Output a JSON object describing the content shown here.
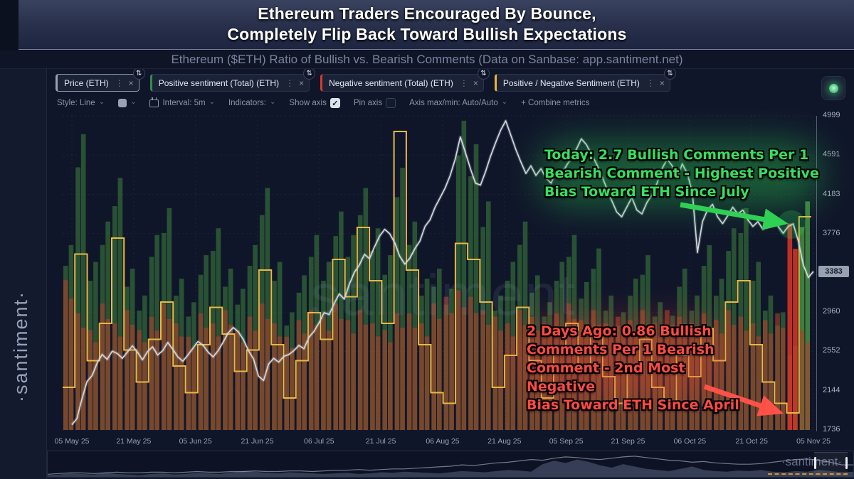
{
  "header": {
    "title_line1": "Ethereum Traders Encouraged By Bounce,",
    "title_line2": "Completely Flip Back Toward Bullish Expectations",
    "subtitle": "Ethereum ($ETH) Ratio of Bullish vs. Bearish Comments (Data on Sanbase: app.santiment.net)"
  },
  "sidebar": {
    "brand": "·santiment·"
  },
  "icons": {
    "caret": "⌄",
    "dots": "⋮",
    "close": "×",
    "check": "✓",
    "swap": "⇅",
    "plus": "+"
  },
  "tabs": [
    {
      "label": "Price (ETH)",
      "color": "#9aa0ae"
    },
    {
      "label": "Positive sentiment (Total) (ETH)",
      "color": "#2e8b4f"
    },
    {
      "label": "Negative sentiment (Total) (ETH)",
      "color": "#d63a2f"
    },
    {
      "label": "Positive / Negative Sentiment (ETH)",
      "color": "#e9b43e"
    }
  ],
  "toolbar": {
    "style": "Style: Line",
    "interval": "Interval: 5m",
    "indicators": "Indicators:",
    "show_axis": "Show axis",
    "pin_axis": "Pin axis",
    "axis_maxmin": "Axis max/min: Auto/Auto",
    "combine": "+ Combine metrics"
  },
  "chart_data": {
    "type": "composite",
    "title": "Ethereum ($ETH) Ratio of Bullish vs. Bearish Comments",
    "grid": true,
    "legend_position": "top-tabs",
    "x_tick_labels": [
      "05 May 25",
      "21 May 25",
      "05 Jun 25",
      "21 Jun 25",
      "06 Jul 25",
      "21 Jul 25",
      "06 Aug 25",
      "21 Aug 25",
      "05 Sep 25",
      "21 Sep 25",
      "06 Oct 25",
      "21 Oct 25",
      "05 Nov 25"
    ],
    "price_axis": {
      "ylim": [
        1736,
        4999
      ],
      "ticks": [
        4999,
        4591,
        4183,
        3776,
        2960,
        2552,
        2144,
        1736
      ],
      "current_price": "3383"
    },
    "sentiment_ylim": [
      0,
      100
    ],
    "ratio_ylim": [
      0.7,
      3.6
    ],
    "highlights": {
      "today_ratio": 2.7,
      "two_days_ago_ratio": 0.86,
      "negative_spike_index": 59,
      "positive_spike_index": 60,
      "negative_spike_color": "rgba(214,52,38,0.88)",
      "positive_spike_color": "rgba(74,152,68,0.80)"
    },
    "series": [
      {
        "name": "Price (ETH)",
        "type": "line",
        "color": "#d0d5de",
        "values": [
          1790,
          1855,
          2060,
          2240,
          2300,
          2430,
          2520,
          2470,
          2555,
          2530,
          2480,
          2545,
          2610,
          2545,
          2465,
          2550,
          2600,
          2515,
          2560,
          2645,
          2575,
          2495,
          2450,
          2515,
          2585,
          2655,
          2615,
          2545,
          2495,
          2560,
          2650,
          2745,
          2800,
          2755,
          2675,
          2560,
          2475,
          2295,
          2250,
          2420,
          2480,
          2440,
          2500,
          2520,
          2560,
          2615,
          2580,
          2700,
          2760,
          2850,
          2955,
          2935,
          3050,
          3150,
          3095,
          3250,
          3375,
          3450,
          3560,
          3515,
          3640,
          3750,
          3820,
          3775,
          3680,
          3540,
          3460,
          3520,
          3620,
          3700,
          3850,
          3920,
          4050,
          4150,
          4250,
          4380,
          4550,
          4780,
          4620,
          4450,
          4300,
          4280,
          4420,
          4580,
          4720,
          4850,
          4947,
          4800,
          4650,
          4520,
          4400,
          4480,
          4380,
          4450,
          4350,
          4300,
          4420,
          4380,
          4480,
          4560,
          4650,
          4760,
          4700,
          4600,
          4500,
          4380,
          4250,
          4120,
          4000,
          3950,
          4050,
          4150,
          4020,
          3980,
          4100,
          4180,
          4300,
          4450,
          4550,
          4480,
          4350,
          4500,
          4400,
          4200,
          3580,
          3900,
          4020,
          4080,
          3950,
          3880,
          3960,
          4050,
          3980,
          4020,
          3920,
          3850,
          3900,
          3820,
          3880,
          3950,
          3850,
          3780,
          3850,
          3877,
          3700,
          3450,
          3320,
          3383
        ]
      },
      {
        "name": "Positive sentiment (Total) (ETH)",
        "type": "bar",
        "color": "rgba(58,122,58,0.60)",
        "values": [
          55,
          88,
          50,
          62,
          75,
          48,
          40,
          58,
          66,
          45,
          38,
          52,
          60,
          48,
          42,
          55,
          72,
          50,
          35,
          46,
          58,
          50,
          65,
          58,
          72,
          60,
          52,
          78,
          62,
          45,
          48,
          42,
          92,
          85,
          68,
          40,
          50,
          62,
          46,
          38,
          50,
          58,
          44,
          54,
          40,
          35,
          45,
          52,
          38,
          34,
          48,
          40,
          55,
          45,
          60,
          66,
          50,
          40,
          35,
          25,
          68
        ]
      },
      {
        "name": "Negative sentiment (Total) (ETH)",
        "type": "bar",
        "color": "rgba(172,66,42,0.60)",
        "values": [
          45,
          35,
          30,
          38,
          32,
          36,
          30,
          34,
          38,
          32,
          28,
          35,
          32,
          36,
          30,
          34,
          38,
          32,
          28,
          33,
          36,
          34,
          38,
          33,
          36,
          32,
          30,
          35,
          35,
          32,
          38,
          40,
          42,
          40,
          36,
          34,
          32,
          36,
          34,
          32,
          35,
          38,
          33,
          36,
          32,
          34,
          33,
          36,
          32,
          36,
          34,
          32,
          35,
          33,
          36,
          34,
          32,
          33,
          35,
          62,
          30
        ]
      },
      {
        "name": "Positive / Negative Sentiment (ETH)",
        "type": "step-line",
        "color": "#eab842",
        "values": [
          1.1,
          2.35,
          1.35,
          1.7,
          2.5,
          1.45,
          1.15,
          1.55,
          1.9,
          1.3,
          1.05,
          1.5,
          1.85,
          1.6,
          1.25,
          1.45,
          2.2,
          1.5,
          1.0,
          1.35,
          1.8,
          1.55,
          2.3,
          1.95,
          2.6,
          2.1,
          1.7,
          3.5,
          2.2,
          1.5,
          1.05,
          0.95,
          2.45,
          2.3,
          1.9,
          1.1,
          1.4,
          1.85,
          1.35,
          1.0,
          1.45,
          1.7,
          1.3,
          1.6,
          1.2,
          0.95,
          1.3,
          1.55,
          1.1,
          0.9,
          1.4,
          1.2,
          1.65,
          1.35,
          1.9,
          2.1,
          1.5,
          1.15,
          0.95,
          0.86,
          2.7
        ]
      }
    ]
  },
  "annotations": {
    "bullish": {
      "color": "#35e05e",
      "lines": [
        "Today: 2.7 Bullish Comments Per 1",
        "Bearish Comment - Highest Positive",
        "Bias Toward ETH Since July"
      ]
    },
    "bearish": {
      "color": "#ff4b44",
      "lines": [
        "2 Days Ago: 0.86 Bullish",
        "Comments Per 1 Bearish",
        "Comment - 2nd Most Negative",
        "Bias Toward ETH Since April"
      ]
    }
  },
  "watermark": {
    "center": "santiment",
    "navigator": "·santiment·"
  },
  "navigator": {
    "area_values": [
      3,
      4,
      6,
      5,
      4,
      7,
      5,
      4,
      3,
      5,
      6,
      4,
      5,
      7,
      6,
      5,
      8,
      10,
      9,
      7,
      6,
      8,
      7,
      6,
      5,
      6,
      7,
      5,
      6,
      8,
      7,
      9,
      8,
      7,
      6,
      8,
      10,
      9,
      8,
      10,
      12,
      11,
      9,
      22,
      28,
      24,
      30,
      26,
      20,
      16,
      22,
      18,
      14,
      12,
      10,
      14,
      18,
      12,
      10,
      9,
      11,
      10,
      12,
      9,
      8,
      10,
      9,
      12,
      10,
      8,
      9
    ],
    "line_values": [
      4,
      5,
      6,
      6,
      5,
      6,
      7,
      6,
      6,
      7,
      7,
      6,
      7,
      8,
      7,
      7,
      8,
      8,
      9,
      8,
      8,
      9,
      9,
      8,
      9,
      10,
      10,
      11,
      10,
      11,
      12,
      12,
      13,
      14,
      15,
      16,
      18,
      17,
      19,
      21,
      22,
      24,
      26,
      25,
      28,
      30,
      29,
      27,
      26,
      28,
      30,
      31,
      29,
      27,
      25,
      24,
      22,
      23,
      21,
      20,
      19,
      19,
      20,
      22,
      24,
      26,
      27,
      25,
      22,
      18,
      18
    ]
  }
}
